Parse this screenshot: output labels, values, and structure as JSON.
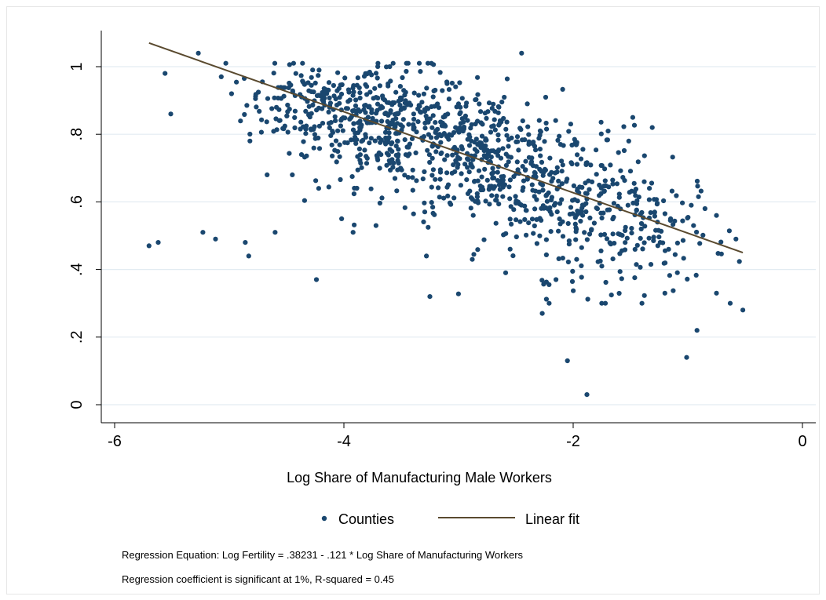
{
  "chart_data": {
    "type": "scatter",
    "xlabel": "Log Share of Manufacturing Male Workers",
    "ylabel": "",
    "xlim": [
      -6.1,
      0.1
    ],
    "ylim": [
      -0.03,
      1.1
    ],
    "xticks": [
      -6,
      -4,
      -2,
      0
    ],
    "xtick_labels": [
      "-6",
      "-4",
      "-2",
      "0"
    ],
    "yticks": [
      0,
      0.2,
      0.4,
      0.6,
      0.8,
      1
    ],
    "ytick_labels": [
      "0",
      ".2",
      ".4",
      ".6",
      ".8",
      "1"
    ],
    "grid": "horizontal",
    "legend": {
      "position": "bottom",
      "entries": [
        "Counties",
        "Linear fit"
      ]
    },
    "series": [
      {
        "name": "Counties",
        "kind": "scatter",
        "color": "#1a476f",
        "points": [
          [
            -5.7,
            0.47
          ],
          [
            -5.62,
            0.48
          ],
          [
            -5.56,
            0.98
          ],
          [
            -5.51,
            0.86
          ],
          [
            -5.27,
            1.04
          ],
          [
            -5.23,
            0.51
          ],
          [
            -5.12,
            0.49
          ],
          [
            -5.07,
            0.97
          ],
          [
            -5.03,
            1.01
          ],
          [
            -4.98,
            0.92
          ],
          [
            -4.86,
            0.48
          ],
          [
            -4.83,
            0.44
          ],
          [
            -4.82,
            0.78
          ],
          [
            -4.6,
            0.51
          ],
          [
            -4.24,
            0.37
          ],
          [
            -4.22,
            0.64
          ],
          [
            -3.92,
            0.51
          ],
          [
            -3.28,
            0.44
          ],
          [
            -3.25,
            0.32
          ],
          [
            -2.88,
            0.43
          ],
          [
            -2.45,
            1.04
          ],
          [
            -2.27,
            0.27
          ],
          [
            -2.05,
            0.13
          ],
          [
            -1.88,
            0.03
          ],
          [
            -1.01,
            0.14
          ],
          [
            -0.92,
            0.22
          ],
          [
            -0.63,
            0.3
          ],
          [
            -0.52,
            0.28
          ],
          [
            -0.58,
            0.49
          ],
          [
            -0.75,
            0.33
          ],
          [
            -1.4,
            0.3
          ],
          [
            -1.2,
            0.33
          ],
          [
            -1.48,
            0.85
          ],
          [
            -1.31,
            0.82
          ],
          [
            -2.11,
            0.77
          ],
          [
            -2.4,
            0.89
          ],
          [
            -2.55,
            0.46
          ],
          [
            -3.1,
            0.95
          ],
          [
            -3.72,
            0.53
          ],
          [
            -4.02,
            0.55
          ],
          [
            -4.45,
            0.68
          ],
          [
            -4.67,
            0.68
          ],
          [
            -4.37,
            0.74
          ],
          [
            -3.6,
            1.0
          ],
          [
            -0.85,
            0.58
          ],
          [
            -0.95,
            0.53
          ],
          [
            -0.97,
            0.59
          ],
          [
            -1.15,
            0.55
          ],
          [
            -1.75,
            0.41
          ],
          [
            -2.15,
            0.37
          ]
        ],
        "cloud": [
          {
            "x_mean": -4.25,
            "x_sd": 0.3,
            "y_mean": 0.89,
            "y_sd": 0.06,
            "n": 170
          },
          {
            "x_mean": -3.55,
            "x_sd": 0.35,
            "y_mean": 0.82,
            "y_sd": 0.085,
            "n": 330
          },
          {
            "x_mean": -2.8,
            "x_sd": 0.35,
            "y_mean": 0.73,
            "y_sd": 0.1,
            "n": 300
          },
          {
            "x_mean": -2.05,
            "x_sd": 0.35,
            "y_mean": 0.6,
            "y_sd": 0.11,
            "n": 230
          },
          {
            "x_mean": -1.3,
            "x_sd": 0.33,
            "y_mean": 0.52,
            "y_sd": 0.09,
            "n": 120
          }
        ]
      },
      {
        "name": "Linear fit",
        "kind": "line",
        "color": "#5a4a2f",
        "x": [
          -5.7,
          -0.52
        ],
        "y": [
          1.07,
          0.45
        ]
      }
    ]
  },
  "notes": {
    "equation": "Regression Equation: Log Fertility =  .38231 -  .121 * Log Share of Manufacturing Workers",
    "significance": "Regression coefficient is significant at 1%, R-squared = 0.45"
  }
}
